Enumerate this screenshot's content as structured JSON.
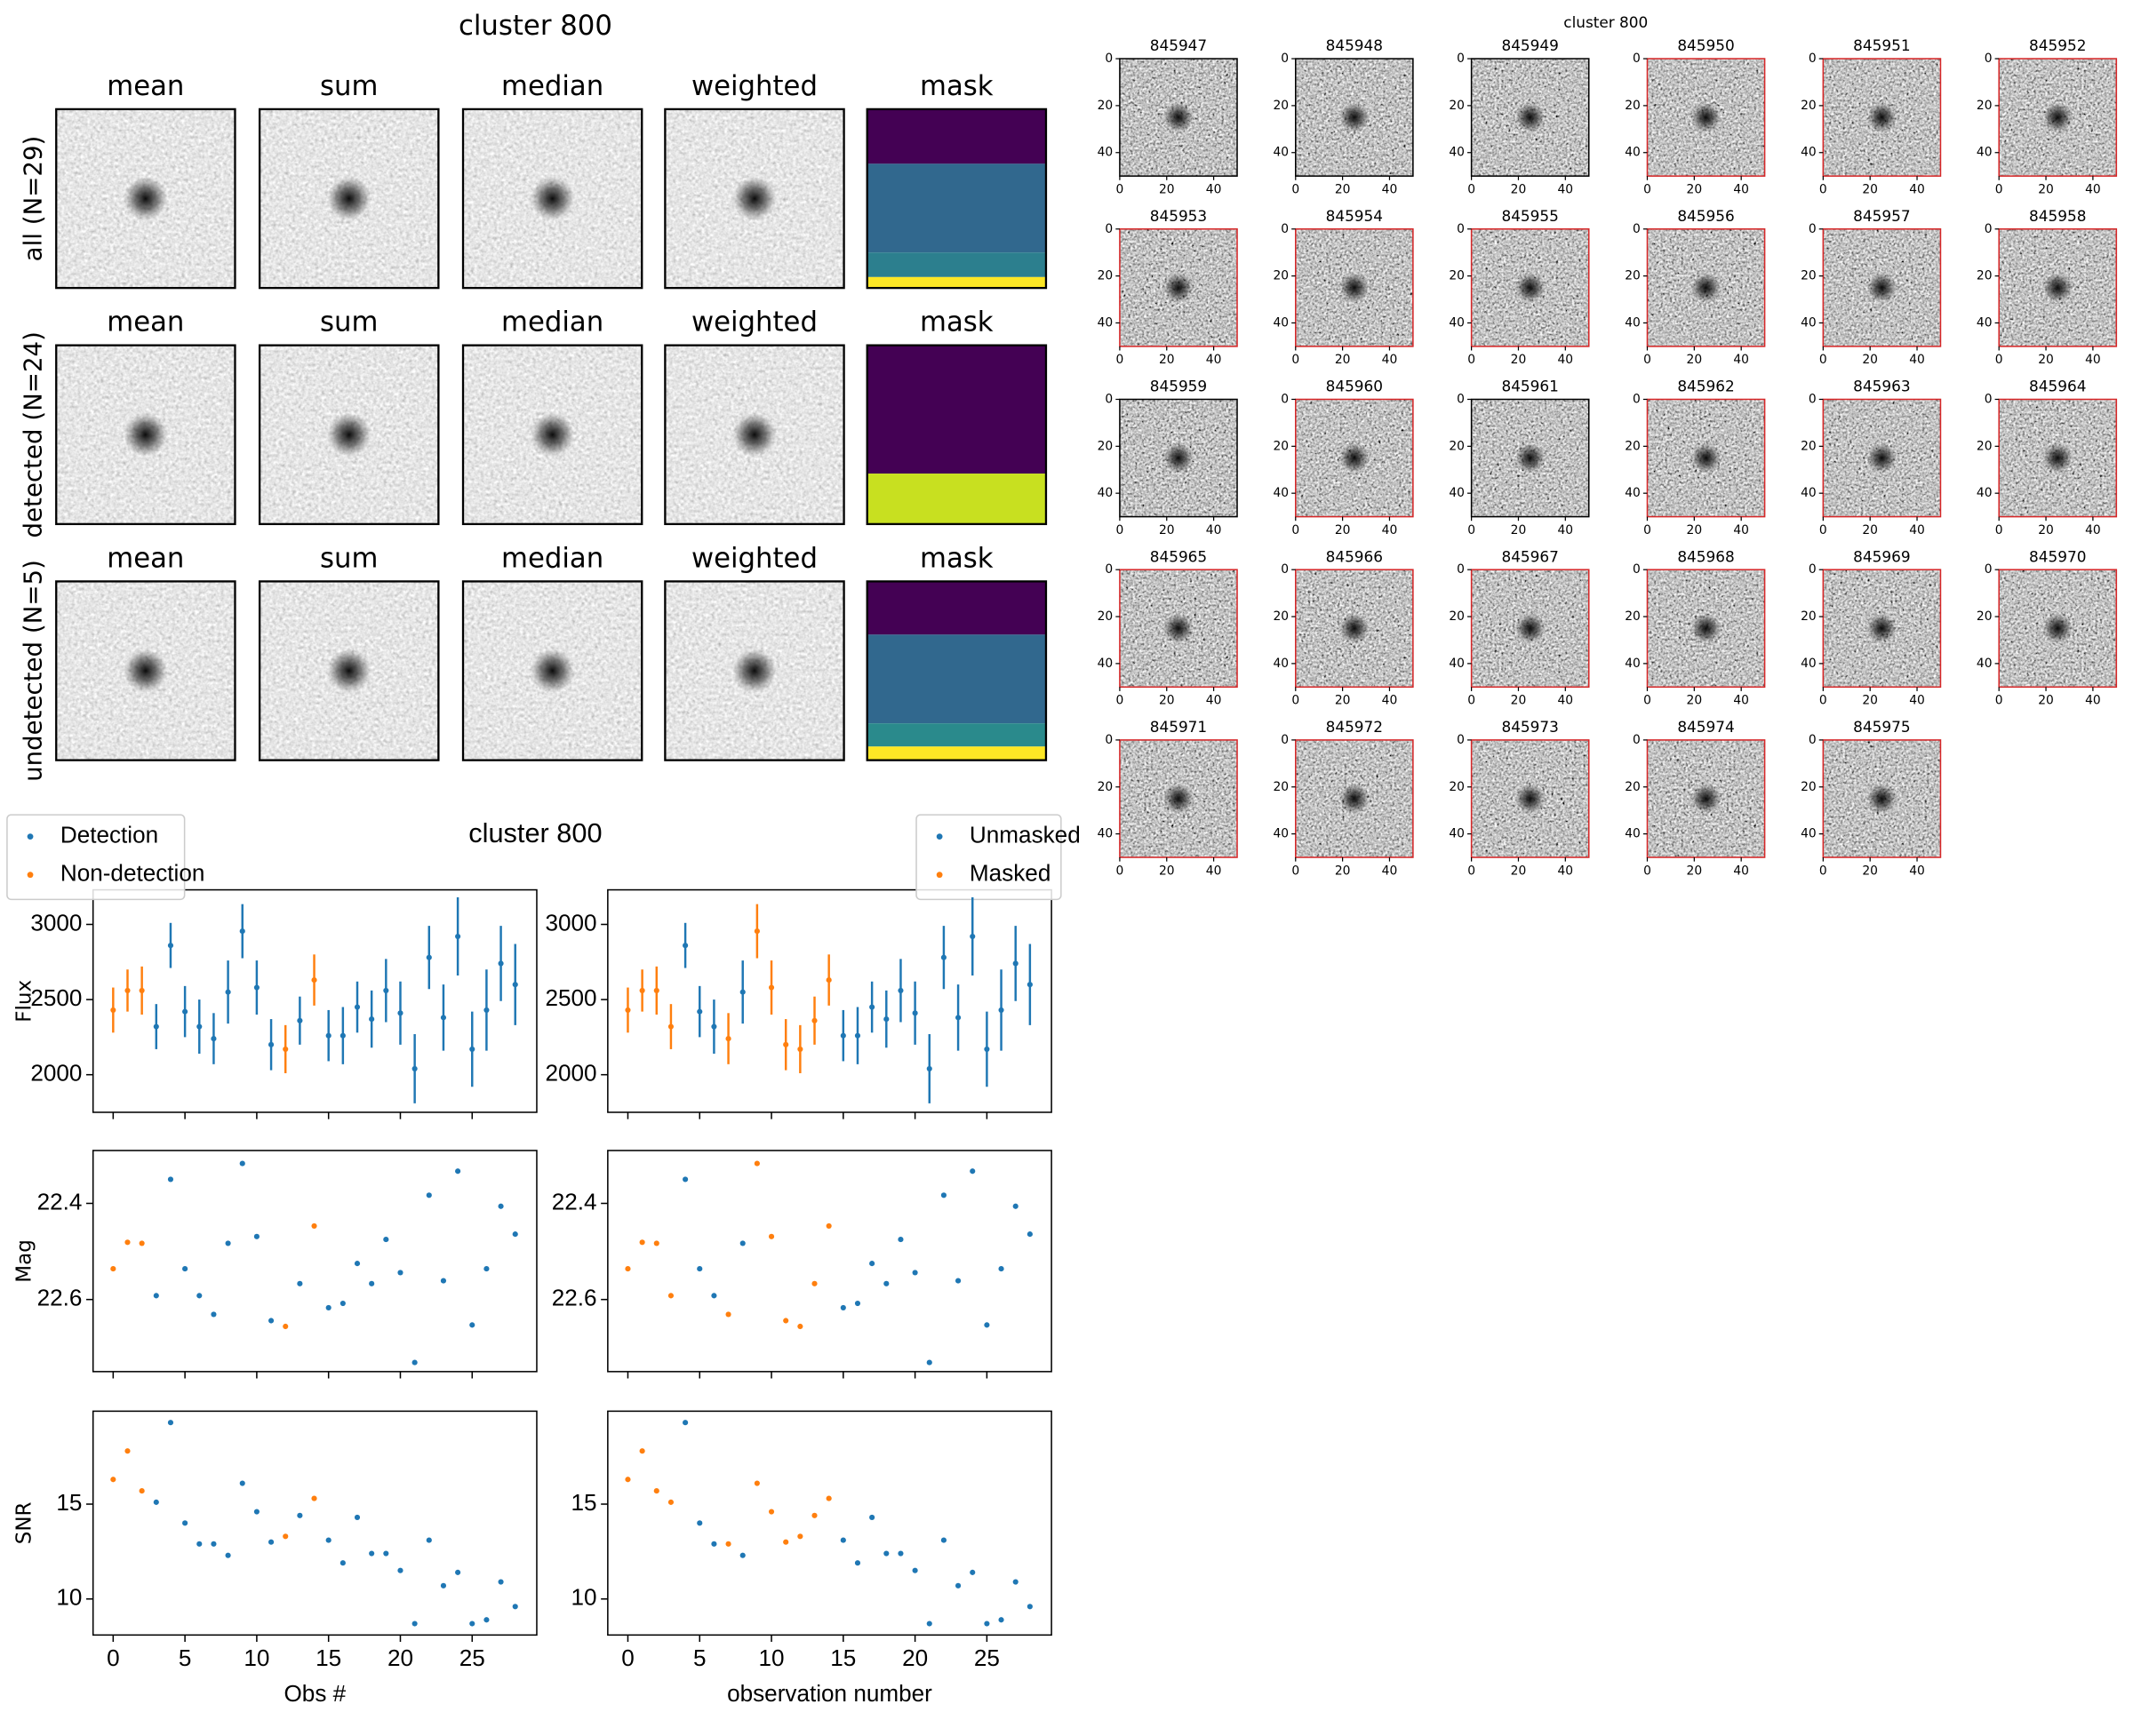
{
  "cutouts": {
    "title": "cluster 800",
    "rows": [
      {
        "label": "all (N=29)",
        "panels": [
          "mean",
          "sum",
          "median",
          "weighted",
          "mask"
        ]
      },
      {
        "label": "detected (N=24)",
        "panels": [
          "mean",
          "sum",
          "median",
          "weighted",
          "mask"
        ]
      },
      {
        "label": "undetected (N=5)",
        "panels": [
          "mean",
          "sum",
          "median",
          "weighted",
          "mask"
        ]
      }
    ]
  },
  "stamps": {
    "title": "cluster 800",
    "xlim": [
      0,
      50
    ],
    "ylim": [
      50,
      0
    ],
    "xticks": [
      0,
      20,
      40
    ],
    "yticks": [
      0,
      20,
      40
    ],
    "items": [
      {
        "id": "845947",
        "border": "#000000"
      },
      {
        "id": "845948",
        "border": "#000000"
      },
      {
        "id": "845949",
        "border": "#000000"
      },
      {
        "id": "845950",
        "border": "#d62728"
      },
      {
        "id": "845951",
        "border": "#d62728"
      },
      {
        "id": "845952",
        "border": "#d62728"
      },
      {
        "id": "845953",
        "border": "#d62728"
      },
      {
        "id": "845954",
        "border": "#d62728"
      },
      {
        "id": "845955",
        "border": "#d62728"
      },
      {
        "id": "845956",
        "border": "#d62728"
      },
      {
        "id": "845957",
        "border": "#d62728"
      },
      {
        "id": "845958",
        "border": "#d62728"
      },
      {
        "id": "845959",
        "border": "#000000"
      },
      {
        "id": "845960",
        "border": "#d62728"
      },
      {
        "id": "845961",
        "border": "#000000"
      },
      {
        "id": "845962",
        "border": "#d62728"
      },
      {
        "id": "845963",
        "border": "#d62728"
      },
      {
        "id": "845964",
        "border": "#d62728"
      },
      {
        "id": "845965",
        "border": "#d62728"
      },
      {
        "id": "845966",
        "border": "#d62728"
      },
      {
        "id": "845967",
        "border": "#d62728"
      },
      {
        "id": "845968",
        "border": "#d62728"
      },
      {
        "id": "845969",
        "border": "#d62728"
      },
      {
        "id": "845970",
        "border": "#d62728"
      },
      {
        "id": "845971",
        "border": "#d62728"
      },
      {
        "id": "845972",
        "border": "#d62728"
      },
      {
        "id": "845973",
        "border": "#d62728"
      },
      {
        "id": "845974",
        "border": "#d62728"
      },
      {
        "id": "845975",
        "border": "#d62728"
      }
    ]
  },
  "lightcurve_title": "cluster 800",
  "chart_data": [
    {
      "type": "errorbar",
      "ylabel": "Flux",
      "legend": "upper left",
      "xlim": [
        -1.4,
        29.5
      ],
      "ylim": [
        1750,
        3230
      ],
      "xticks": [
        0,
        5,
        10,
        15,
        20,
        25
      ],
      "yticks": [
        2000,
        2500,
        3000
      ],
      "series": [
        {
          "name": "Detection",
          "color": "#1f77b4",
          "x": [
            3,
            4,
            5,
            6,
            7,
            8,
            9,
            10,
            11,
            13,
            15,
            16,
            17,
            18,
            19,
            20,
            21,
            22,
            23,
            24,
            25,
            26,
            27,
            28
          ],
          "values": [
            2320,
            2860,
            2420,
            2320,
            2240,
            2550,
            2955,
            2580,
            2200,
            2360,
            2260,
            2260,
            2450,
            2370,
            2560,
            2410,
            2040,
            2780,
            2380,
            2920,
            2170,
            2430,
            2740,
            2600
          ],
          "errors": [
            150,
            150,
            170,
            180,
            170,
            210,
            180,
            180,
            170,
            160,
            170,
            190,
            170,
            190,
            210,
            210,
            230,
            210,
            220,
            260,
            250,
            270,
            250,
            270
          ]
        },
        {
          "name": "Non-detection",
          "color": "#ff7f0e",
          "x": [
            0,
            1,
            2,
            12,
            14
          ],
          "values": [
            2430,
            2560,
            2560,
            2170,
            2630
          ],
          "errors": [
            150,
            140,
            160,
            160,
            170
          ]
        }
      ]
    },
    {
      "type": "scatter",
      "ylabel": "Mag",
      "xlim": [
        -1.4,
        29.5
      ],
      "ylim": [
        22.75,
        22.29
      ],
      "xticks": [
        0,
        5,
        10,
        15,
        20,
        25
      ],
      "yticks": [
        22.4,
        22.6
      ],
      "series": [
        {
          "color": "#1f77b4",
          "x": [
            3,
            4,
            5,
            6,
            7,
            8,
            9,
            10,
            11,
            13,
            15,
            16,
            17,
            18,
            19,
            20,
            21,
            22,
            23,
            24,
            25,
            26,
            27,
            28
          ],
          "values": [
            22.592,
            22.35,
            22.536,
            22.592,
            22.631,
            22.483,
            22.317,
            22.469,
            22.644,
            22.567,
            22.617,
            22.608,
            22.525,
            22.567,
            22.475,
            22.544,
            22.731,
            22.383,
            22.561,
            22.333,
            22.653,
            22.536,
            22.406,
            22.464
          ]
        },
        {
          "color": "#ff7f0e",
          "x": [
            0,
            1,
            2,
            12,
            14
          ],
          "values": [
            22.536,
            22.481,
            22.483,
            22.656,
            22.447
          ]
        }
      ]
    },
    {
      "type": "scatter",
      "ylabel": "SNR",
      "xlabel": "Obs #",
      "xlim": [
        -1.4,
        29.5
      ],
      "ylim": [
        8.1,
        19.9
      ],
      "xticks": [
        0,
        5,
        10,
        15,
        20,
        25
      ],
      "yticks": [
        10,
        15
      ],
      "series": [
        {
          "color": "#1f77b4",
          "x": [
            3,
            4,
            5,
            6,
            7,
            8,
            9,
            10,
            11,
            13,
            15,
            16,
            17,
            18,
            19,
            20,
            21,
            22,
            23,
            24,
            25,
            26,
            27,
            28
          ],
          "values": [
            15.1,
            19.3,
            14,
            12.9,
            12.9,
            12.3,
            16.1,
            14.6,
            13,
            14.4,
            13.1,
            11.9,
            14.3,
            12.4,
            12.4,
            11.5,
            8.7,
            13.1,
            10.7,
            11.4,
            8.7,
            8.9,
            10.9,
            9.6
          ]
        },
        {
          "color": "#ff7f0e",
          "x": [
            0,
            1,
            2,
            12,
            14
          ],
          "values": [
            16.3,
            17.8,
            15.7,
            13.3,
            15.3
          ]
        }
      ]
    },
    {
      "type": "errorbar",
      "legend": "upper right",
      "xlim": [
        -1.4,
        29.5
      ],
      "ylim": [
        1750,
        3230
      ],
      "xticks": [
        0,
        5,
        10,
        15,
        20,
        25
      ],
      "yticks": [
        2000,
        2500,
        3000
      ],
      "series": [
        {
          "name": "Unmasked",
          "color": "#1f77b4",
          "x": [
            4,
            5,
            6,
            8,
            15,
            16,
            17,
            18,
            19,
            20,
            21,
            22,
            23,
            24,
            25,
            26,
            27,
            28
          ],
          "values": [
            2860,
            2420,
            2320,
            2550,
            2260,
            2260,
            2450,
            2370,
            2560,
            2410,
            2040,
            2780,
            2380,
            2920,
            2170,
            2430,
            2740,
            2600
          ],
          "errors": [
            150,
            170,
            180,
            210,
            170,
            190,
            170,
            190,
            210,
            210,
            230,
            210,
            220,
            260,
            250,
            270,
            250,
            270
          ]
        },
        {
          "name": "Masked",
          "color": "#ff7f0e",
          "x": [
            0,
            1,
            2,
            3,
            7,
            9,
            10,
            11,
            12,
            13,
            14
          ],
          "values": [
            2430,
            2560,
            2560,
            2320,
            2240,
            2955,
            2580,
            2200,
            2170,
            2360,
            2630
          ],
          "errors": [
            150,
            140,
            160,
            150,
            170,
            180,
            180,
            170,
            160,
            160,
            170
          ]
        }
      ]
    },
    {
      "type": "scatter",
      "xlim": [
        -1.4,
        29.5
      ],
      "ylim": [
        22.75,
        22.29
      ],
      "xticks": [
        0,
        5,
        10,
        15,
        20,
        25
      ],
      "yticks": [
        22.4,
        22.6
      ],
      "series": [
        {
          "color": "#1f77b4",
          "x": [
            4,
            5,
            6,
            8,
            15,
            16,
            17,
            18,
            19,
            20,
            21,
            22,
            23,
            24,
            25,
            26,
            27,
            28
          ],
          "values": [
            22.35,
            22.536,
            22.592,
            22.483,
            22.617,
            22.608,
            22.525,
            22.567,
            22.475,
            22.544,
            22.731,
            22.383,
            22.561,
            22.333,
            22.653,
            22.536,
            22.406,
            22.464
          ]
        },
        {
          "color": "#ff7f0e",
          "x": [
            0,
            1,
            2,
            3,
            7,
            9,
            10,
            11,
            12,
            13,
            14
          ],
          "values": [
            22.536,
            22.481,
            22.483,
            22.592,
            22.631,
            22.317,
            22.469,
            22.644,
            22.656,
            22.567,
            22.447
          ]
        }
      ]
    },
    {
      "type": "scatter",
      "xlabel": "observation number",
      "xlim": [
        -1.4,
        29.5
      ],
      "ylim": [
        8.1,
        19.9
      ],
      "xticks": [
        0,
        5,
        10,
        15,
        20,
        25
      ],
      "yticks": [
        10,
        15
      ],
      "series": [
        {
          "color": "#1f77b4",
          "x": [
            4,
            5,
            6,
            8,
            15,
            16,
            17,
            18,
            19,
            20,
            21,
            22,
            23,
            24,
            25,
            26,
            27,
            28
          ],
          "values": [
            19.3,
            14,
            12.9,
            12.3,
            13.1,
            11.9,
            14.3,
            12.4,
            12.4,
            11.5,
            8.7,
            13.1,
            10.7,
            11.4,
            8.7,
            8.9,
            10.9,
            9.6
          ]
        },
        {
          "color": "#ff7f0e",
          "x": [
            0,
            1,
            2,
            3,
            7,
            9,
            10,
            11,
            12,
            13,
            14
          ],
          "values": [
            16.3,
            17.8,
            15.7,
            15.1,
            12.9,
            16.1,
            14.6,
            13,
            13.3,
            14.4,
            15.3
          ]
        }
      ]
    }
  ]
}
